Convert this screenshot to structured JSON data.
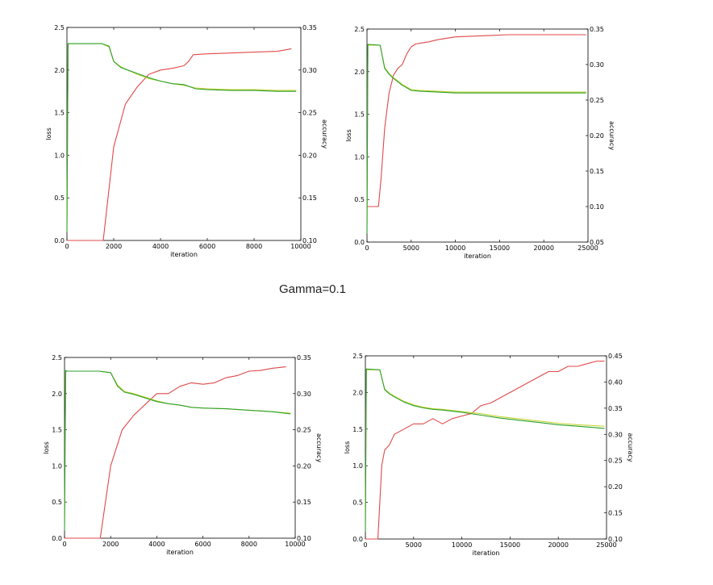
{
  "caption": "Gamma=0.1",
  "colors": {
    "accuracy": "#e0484a",
    "loss_test": "#2ca02c",
    "loss_train": "#c8d636"
  },
  "chart_data": [
    {
      "type": "line",
      "xlabel": "iteration",
      "ylabel": "loss",
      "y2label": "accuracy",
      "xlim": [
        0,
        10000
      ],
      "xticks": [
        0,
        2000,
        4000,
        6000,
        8000,
        10000
      ],
      "ylim": [
        0,
        2.5
      ],
      "yticks": [
        "0.0",
        "0.5",
        "1.0",
        "1.5",
        "2.0",
        "2.5"
      ],
      "y2lim": [
        0.1,
        0.35
      ],
      "y2ticks": [
        "0.10",
        "0.15",
        "0.20",
        "0.25",
        "0.30",
        "0.35"
      ],
      "series": [
        {
          "axis": "y2",
          "color": "#e0484a",
          "x": [
            0,
            1500,
            1550,
            2000,
            2500,
            3000,
            3500,
            4000,
            4500,
            5000,
            5200,
            5400,
            6000,
            7000,
            8000,
            9000,
            9600
          ],
          "y": [
            0.1,
            0.1,
            0.1,
            0.21,
            0.26,
            0.28,
            0.295,
            0.3,
            0.302,
            0.305,
            0.31,
            0.318,
            0.319,
            0.32,
            0.321,
            0.322,
            0.325
          ]
        },
        {
          "axis": "y",
          "color": "#c8d636",
          "x": [
            0,
            50,
            100,
            1500,
            1800,
            2000,
            2300,
            2600,
            3000,
            3500,
            4000,
            4500,
            5000,
            5500,
            6000,
            7000,
            8000,
            9000,
            9800
          ],
          "y": [
            0.2,
            2.3,
            2.31,
            2.31,
            2.27,
            2.1,
            2.04,
            2.0,
            1.95,
            1.9,
            1.87,
            1.84,
            1.82,
            1.79,
            1.78,
            1.77,
            1.77,
            1.76,
            1.76
          ]
        },
        {
          "axis": "y",
          "color": "#2ca02c",
          "x": [
            0,
            50,
            100,
            1500,
            1800,
            2000,
            2300,
            2600,
            3000,
            3500,
            4000,
            4500,
            5000,
            5500,
            6000,
            7000,
            8000,
            9000,
            9800
          ],
          "y": [
            0.1,
            2.31,
            2.31,
            2.31,
            2.28,
            2.1,
            2.03,
            2.0,
            1.96,
            1.91,
            1.87,
            1.84,
            1.83,
            1.78,
            1.77,
            1.76,
            1.76,
            1.75,
            1.75
          ]
        }
      ]
    },
    {
      "type": "line",
      "xlabel": "iteration",
      "ylabel": "loss",
      "y2label": "accuracy",
      "xlim": [
        0,
        25000
      ],
      "xticks": [
        0,
        5000,
        10000,
        15000,
        20000,
        25000
      ],
      "ylim": [
        0,
        2.5
      ],
      "yticks": [
        "0.0",
        "0.5",
        "1.0",
        "1.5",
        "2.0",
        "2.5"
      ],
      "y2lim": [
        0.05,
        0.35
      ],
      "y2ticks": [
        "0.05",
        "0.10",
        "0.15",
        "0.20",
        "0.25",
        "0.30",
        "0.35"
      ],
      "series": [
        {
          "axis": "y2",
          "color": "#e0484a",
          "x": [
            0,
            1300,
            1600,
            2000,
            2500,
            3000,
            3500,
            4000,
            4500,
            5000,
            5500,
            6000,
            7000,
            8000,
            9000,
            10000,
            12000,
            14000,
            16000,
            20000,
            24800
          ],
          "y": [
            0.1,
            0.1,
            0.14,
            0.21,
            0.26,
            0.285,
            0.295,
            0.3,
            0.315,
            0.325,
            0.329,
            0.33,
            0.332,
            0.335,
            0.337,
            0.339,
            0.34,
            0.341,
            0.342,
            0.342,
            0.342
          ]
        },
        {
          "axis": "y",
          "color": "#c8d636",
          "x": [
            0,
            100,
            1500,
            2000,
            2500,
            3000,
            4000,
            5000,
            6000,
            8000,
            10000,
            15000,
            20000,
            24800
          ],
          "y": [
            0.2,
            2.31,
            2.31,
            2.05,
            1.98,
            1.93,
            1.85,
            1.79,
            1.78,
            1.77,
            1.76,
            1.76,
            1.76,
            1.76
          ]
        },
        {
          "axis": "y",
          "color": "#2ca02c",
          "x": [
            0,
            100,
            1500,
            2000,
            2500,
            3000,
            4000,
            5000,
            6000,
            8000,
            10000,
            15000,
            20000,
            24800
          ],
          "y": [
            0.1,
            2.32,
            2.31,
            2.04,
            1.97,
            1.92,
            1.84,
            1.78,
            1.77,
            1.76,
            1.75,
            1.75,
            1.75,
            1.75
          ]
        }
      ]
    },
    {
      "type": "line",
      "xlabel": "iteration",
      "ylabel": "loss",
      "y2label": "accuracy",
      "xlim": [
        0,
        10000
      ],
      "xticks": [
        0,
        2000,
        4000,
        6000,
        8000,
        10000
      ],
      "ylim": [
        0,
        2.5
      ],
      "yticks": [
        "0.0",
        "0.5",
        "1.0",
        "1.5",
        "2.0",
        "2.5"
      ],
      "y2lim": [
        0.1,
        0.35
      ],
      "y2ticks": [
        "0.10",
        "0.15",
        "0.20",
        "0.25",
        "0.30",
        "0.35"
      ],
      "series": [
        {
          "axis": "y2",
          "color": "#e0484a",
          "x": [
            0,
            1500,
            1550,
            2000,
            2500,
            3000,
            3500,
            4000,
            4500,
            5000,
            5500,
            6000,
            6500,
            7000,
            7500,
            8000,
            8500,
            9000,
            9600
          ],
          "y": [
            0.1,
            0.1,
            0.1,
            0.2,
            0.25,
            0.27,
            0.285,
            0.3,
            0.3,
            0.31,
            0.315,
            0.313,
            0.315,
            0.322,
            0.325,
            0.331,
            0.332,
            0.335,
            0.337
          ]
        },
        {
          "axis": "y",
          "color": "#c8d636",
          "x": [
            0,
            50,
            100,
            1500,
            2000,
            2300,
            2600,
            3000,
            3500,
            4000,
            4500,
            5000,
            5500,
            6000,
            7000,
            8000,
            9000,
            9800
          ],
          "y": [
            0.2,
            2.3,
            2.31,
            2.31,
            2.29,
            2.12,
            2.03,
            2.0,
            1.95,
            1.9,
            1.86,
            1.84,
            1.81,
            1.8,
            1.79,
            1.77,
            1.75,
            1.73
          ]
        },
        {
          "axis": "y",
          "color": "#2ca02c",
          "x": [
            0,
            50,
            100,
            1500,
            2000,
            2300,
            2600,
            3000,
            3500,
            4000,
            4500,
            5000,
            5500,
            6000,
            7000,
            8000,
            9000,
            9800
          ],
          "y": [
            0.1,
            2.32,
            2.31,
            2.31,
            2.29,
            2.1,
            2.02,
            1.99,
            1.94,
            1.89,
            1.86,
            1.84,
            1.81,
            1.8,
            1.79,
            1.77,
            1.75,
            1.72
          ]
        }
      ]
    },
    {
      "type": "line",
      "xlabel": "iteration",
      "ylabel": "loss",
      "y2label": "accuracy",
      "xlim": [
        0,
        25000
      ],
      "xticks": [
        0,
        5000,
        10000,
        15000,
        20000,
        25000
      ],
      "ylim": [
        0,
        2.5
      ],
      "yticks": [
        "0.0",
        "0.5",
        "1.0",
        "1.5",
        "2.0",
        "2.5"
      ],
      "y2lim": [
        0.1,
        0.45
      ],
      "y2ticks": [
        "0.10",
        "0.15",
        "0.20",
        "0.25",
        "0.30",
        "0.35",
        "0.40",
        "0.45"
      ],
      "series": [
        {
          "axis": "y2",
          "color": "#e0484a",
          "x": [
            0,
            1300,
            1700,
            2000,
            2500,
            3000,
            4000,
            5000,
            6000,
            7000,
            8000,
            9000,
            10000,
            11000,
            12000,
            13000,
            14000,
            15000,
            16000,
            17000,
            18000,
            19000,
            20000,
            21000,
            22000,
            23000,
            24000,
            24800
          ],
          "y": [
            0.1,
            0.1,
            0.24,
            0.27,
            0.28,
            0.3,
            0.31,
            0.32,
            0.32,
            0.33,
            0.32,
            0.33,
            0.335,
            0.34,
            0.355,
            0.36,
            0.37,
            0.38,
            0.39,
            0.4,
            0.41,
            0.42,
            0.42,
            0.43,
            0.43,
            0.435,
            0.44,
            0.44
          ]
        },
        {
          "axis": "y",
          "color": "#c8d636",
          "x": [
            0,
            100,
            1500,
            2000,
            2500,
            3000,
            4000,
            5000,
            6000,
            7000,
            8000,
            10000,
            12000,
            14000,
            16000,
            18000,
            20000,
            22000,
            24800
          ],
          "y": [
            0.2,
            2.31,
            2.31,
            2.05,
            1.99,
            1.95,
            1.88,
            1.83,
            1.8,
            1.78,
            1.77,
            1.74,
            1.71,
            1.67,
            1.64,
            1.61,
            1.58,
            1.56,
            1.54
          ]
        },
        {
          "axis": "y",
          "color": "#2ca02c",
          "x": [
            0,
            100,
            1500,
            2000,
            2500,
            3000,
            4000,
            5000,
            6000,
            7000,
            8000,
            10000,
            12000,
            14000,
            16000,
            18000,
            20000,
            22000,
            24800
          ],
          "y": [
            0.1,
            2.32,
            2.31,
            2.04,
            1.98,
            1.94,
            1.87,
            1.82,
            1.79,
            1.77,
            1.76,
            1.73,
            1.69,
            1.65,
            1.62,
            1.59,
            1.56,
            1.54,
            1.51
          ]
        }
      ]
    }
  ]
}
